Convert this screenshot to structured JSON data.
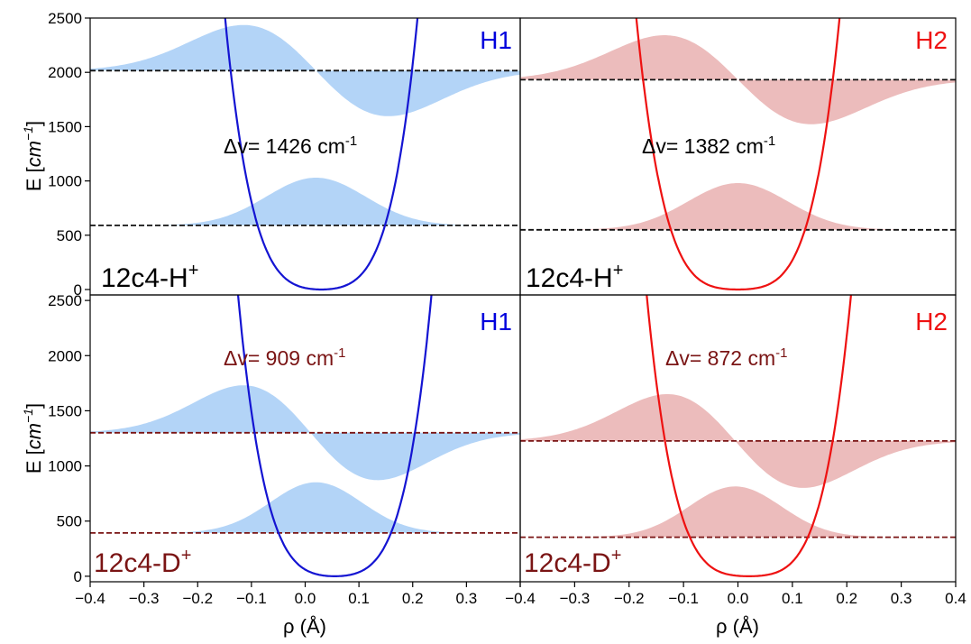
{
  "chart_data": [
    {
      "type": "line",
      "tag": "H1",
      "tag_color": "#0000dd",
      "line_color": "#1414d2",
      "fill_color": "#b3d4f7",
      "level_color": "#111111",
      "system_label": "12c4-H",
      "system_sup": "+",
      "system_color": "#000000",
      "delta_label": "Δv= 1426 cm",
      "delta_sup": "-1",
      "delta_color": "#000000",
      "levels": [
        590,
        2016
      ],
      "potential": {
        "center": 0.03,
        "a2": 14000,
        "a4": 2000000
      },
      "wavefunctions": [
        {
          "base": 590,
          "peak_x": 0.02,
          "amplitude": 440,
          "width": 0.13,
          "excited": false
        },
        {
          "base": 2016,
          "node_x": 0.02,
          "amplitude": 420,
          "width": 0.135,
          "excited": true
        }
      ],
      "xlim": [
        -0.4,
        0.4
      ],
      "ylim": [
        -50,
        2500
      ]
    },
    {
      "type": "line",
      "tag": "H2",
      "tag_color": "#ee1111",
      "line_color": "#ee1111",
      "fill_color": "#ecbcbc",
      "level_color": "#111111",
      "system_label": "12c4-H",
      "system_sup": "+",
      "system_color": "#000000",
      "delta_label": "Δv= 1382 cm",
      "delta_sup": "-1",
      "delta_color": "#000000",
      "levels": [
        550,
        1932
      ],
      "potential": {
        "center": 0.0,
        "a2": 9000,
        "a4": 1800000
      },
      "wavefunctions": [
        {
          "base": 550,
          "peak_x": 0.0,
          "amplitude": 430,
          "width": 0.13,
          "excited": false
        },
        {
          "base": 1932,
          "node_x": 0.0,
          "amplitude": 410,
          "width": 0.135,
          "excited": true
        }
      ],
      "xlim": [
        -0.4,
        0.4
      ],
      "ylim": [
        -50,
        2500
      ]
    },
    {
      "type": "line",
      "tag": "H1",
      "tag_color": "#0000dd",
      "line_color": "#1414d2",
      "fill_color": "#b3d4f7",
      "level_color": "#7a1414",
      "system_label": "12c4-D",
      "system_sup": "+",
      "system_color": "#7a1414",
      "delta_label": "Δv= 909 cm",
      "delta_sup": "-1",
      "delta_color": "#7a1414",
      "levels": [
        392,
        1301
      ],
      "potential": {
        "center": 0.055,
        "a2": 14000,
        "a4": 2000000
      },
      "wavefunctions": [
        {
          "base": 392,
          "peak_x": 0.02,
          "amplitude": 460,
          "width": 0.12,
          "excited": false
        },
        {
          "base": 1301,
          "node_x": 0.01,
          "amplitude": 430,
          "width": 0.125,
          "excited": true
        }
      ],
      "xlim": [
        -0.4,
        0.4
      ],
      "ylim": [
        -50,
        2550
      ]
    },
    {
      "type": "line",
      "tag": "H2",
      "tag_color": "#ee1111",
      "line_color": "#ee1111",
      "fill_color": "#ecbcbc",
      "level_color": "#7a1414",
      "system_label": "12c4-D",
      "system_sup": "+",
      "system_color": "#7a1414",
      "delta_label": "Δv= 872 cm",
      "delta_sup": "-1",
      "delta_color": "#7a1414",
      "levels": [
        354,
        1226
      ],
      "potential": {
        "center": 0.02,
        "a2": 9000,
        "a4": 1800000
      },
      "wavefunctions": [
        {
          "base": 354,
          "peak_x": -0.005,
          "amplitude": 460,
          "width": 0.12,
          "excited": false
        },
        {
          "base": 1226,
          "node_x": -0.005,
          "amplitude": 425,
          "width": 0.125,
          "excited": true
        }
      ],
      "xlim": [
        -0.4,
        0.4
      ],
      "ylim": [
        -50,
        2550
      ]
    }
  ],
  "axes": {
    "ylabel_prefix": "E [",
    "ylabel_unit": "cm",
    "ylabel_sup": "−1",
    "ylabel_suffix": "]",
    "xlabel": "ρ (Å)",
    "xticks": [
      -0.4,
      -0.3,
      -0.2,
      -0.1,
      0.0,
      0.1,
      0.2,
      0.3,
      0.4
    ],
    "xtick_labels": [
      "−0.4",
      "−0.3",
      "−0.2",
      "−0.1",
      "0.0",
      "0.1",
      "0.2",
      "0.3",
      "0.4"
    ],
    "right_xtick_labels": [
      "−0.4",
      "−0.3",
      "−0.2",
      "−0.1",
      "0.0",
      "0.1",
      "0.2",
      "0.3",
      "0.4"
    ],
    "yticks": [
      0,
      500,
      1000,
      1500,
      2000,
      2500
    ],
    "ytick_labels": [
      "0",
      "500",
      "1000",
      "1500",
      "2000",
      "2500"
    ]
  }
}
